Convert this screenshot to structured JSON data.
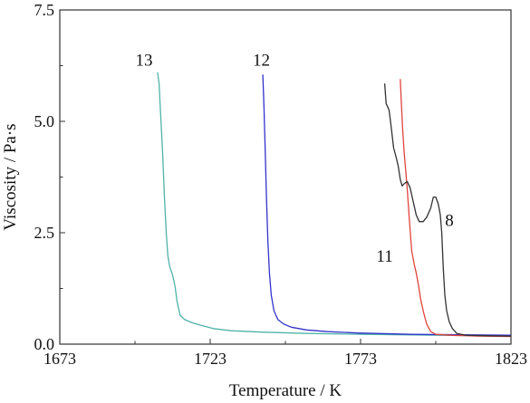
{
  "chart_data": {
    "type": "line",
    "title": "",
    "xlabel": "Temperature / K",
    "ylabel": "Viscosity / Pa·s",
    "xlim": [
      1673,
      1823
    ],
    "ylim": [
      0,
      7.5
    ],
    "xticks": [
      1673,
      1723,
      1773,
      1823
    ],
    "xtick_labels": [
      "1673",
      "1723",
      "1773",
      "1823"
    ],
    "yticks": [
      0,
      2.5,
      5,
      7.5
    ],
    "ytick_labels": [
      "0.0",
      "2.5",
      "5.0",
      "7.5"
    ],
    "grid": false,
    "legend": "none",
    "series": [
      {
        "name": "13",
        "color": "#4fb3a8",
        "label_at": [
          1701,
          6.25
        ],
        "points": [
          [
            1705.5,
            6.1
          ],
          [
            1706.0,
            5.85
          ],
          [
            1706.5,
            5.2
          ],
          [
            1707.2,
            4.3
          ],
          [
            1707.8,
            3.3
          ],
          [
            1708.4,
            2.5
          ],
          [
            1708.9,
            2.0
          ],
          [
            1709.5,
            1.75
          ],
          [
            1710.5,
            1.55
          ],
          [
            1711.3,
            1.3
          ],
          [
            1712.0,
            0.95
          ],
          [
            1713.0,
            0.65
          ],
          [
            1714.5,
            0.55
          ],
          [
            1717.0,
            0.48
          ],
          [
            1720.0,
            0.42
          ],
          [
            1724.0,
            0.35
          ],
          [
            1730.0,
            0.3
          ],
          [
            1740.0,
            0.27
          ],
          [
            1755.0,
            0.24
          ],
          [
            1775.0,
            0.22
          ],
          [
            1800.0,
            0.2
          ],
          [
            1823.0,
            0.18
          ]
        ]
      },
      {
        "name": "12",
        "color": "#3333cc",
        "label_at": [
          1740,
          6.25
        ],
        "points": [
          [
            1740.5,
            6.05
          ],
          [
            1740.9,
            5.3
          ],
          [
            1741.3,
            4.3
          ],
          [
            1741.7,
            3.3
          ],
          [
            1742.2,
            2.3
          ],
          [
            1742.7,
            1.6
          ],
          [
            1743.3,
            1.1
          ],
          [
            1744.2,
            0.75
          ],
          [
            1745.5,
            0.55
          ],
          [
            1747.5,
            0.45
          ],
          [
            1750.0,
            0.38
          ],
          [
            1755.0,
            0.32
          ],
          [
            1762.0,
            0.28
          ],
          [
            1772.0,
            0.25
          ],
          [
            1790.0,
            0.22
          ],
          [
            1823.0,
            0.2
          ]
        ]
      },
      {
        "name": "11",
        "color": "#e0443f",
        "label_at": [
          1781,
          1.85
        ],
        "points": [
          [
            1786.2,
            5.95
          ],
          [
            1786.5,
            5.5
          ],
          [
            1787.0,
            4.8
          ],
          [
            1787.5,
            4.3
          ],
          [
            1788.0,
            3.9
          ],
          [
            1788.6,
            3.4
          ],
          [
            1789.2,
            2.8
          ],
          [
            1790.0,
            2.1
          ],
          [
            1790.8,
            1.8
          ],
          [
            1791.5,
            1.6
          ],
          [
            1792.3,
            1.3
          ],
          [
            1793.0,
            1.0
          ],
          [
            1794.0,
            0.7
          ],
          [
            1795.0,
            0.45
          ],
          [
            1796.3,
            0.28
          ],
          [
            1798.0,
            0.22
          ],
          [
            1803.0,
            0.2
          ],
          [
            1812.0,
            0.18
          ],
          [
            1823.0,
            0.17
          ]
        ]
      },
      {
        "name": "8",
        "color": "#333333",
        "label_at": [
          1802.5,
          2.65
        ],
        "points": [
          [
            1781.0,
            5.85
          ],
          [
            1781.5,
            5.4
          ],
          [
            1782.5,
            5.25
          ],
          [
            1783.3,
            4.8
          ],
          [
            1784.0,
            4.4
          ],
          [
            1784.8,
            4.2
          ],
          [
            1785.5,
            4.0
          ],
          [
            1786.2,
            3.7
          ],
          [
            1786.8,
            3.55
          ],
          [
            1787.5,
            3.6
          ],
          [
            1788.5,
            3.65
          ],
          [
            1789.5,
            3.5
          ],
          [
            1790.5,
            3.2
          ],
          [
            1791.5,
            2.9
          ],
          [
            1792.5,
            2.75
          ],
          [
            1793.8,
            2.75
          ],
          [
            1795.0,
            2.85
          ],
          [
            1796.3,
            3.05
          ],
          [
            1797.2,
            3.3
          ],
          [
            1798.0,
            3.3
          ],
          [
            1798.8,
            3.15
          ],
          [
            1799.5,
            2.9
          ],
          [
            1800.0,
            2.5
          ],
          [
            1800.5,
            1.7
          ],
          [
            1801.0,
            1.1
          ],
          [
            1801.6,
            0.75
          ],
          [
            1802.5,
            0.5
          ],
          [
            1803.5,
            0.35
          ],
          [
            1805.0,
            0.24
          ],
          [
            1808.0,
            0.2
          ],
          [
            1814.0,
            0.19
          ],
          [
            1823.0,
            0.18
          ]
        ]
      }
    ]
  }
}
